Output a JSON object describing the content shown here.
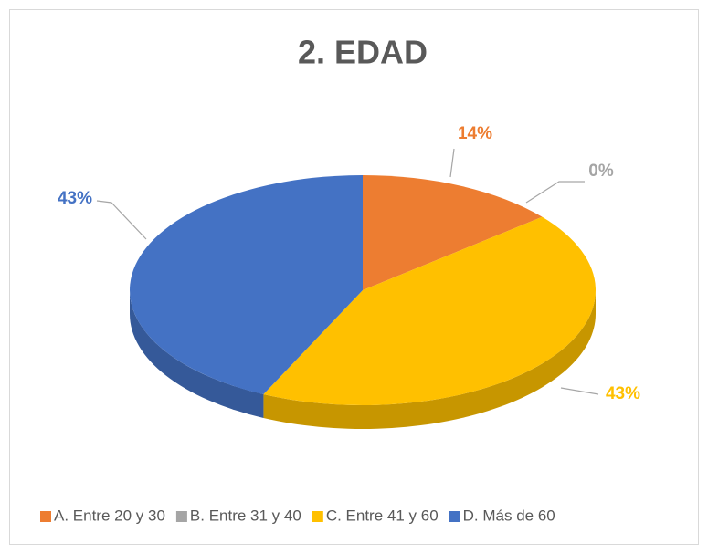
{
  "chart_data": {
    "type": "pie",
    "title": "2. EDAD",
    "categories": [
      "A. Entre 20 y 30",
      "B. Entre 31 y 40",
      "C. Entre 41 y 60",
      "D. Más de 60"
    ],
    "values": [
      14,
      0,
      43,
      43
    ],
    "value_labels": [
      "14%",
      "0%",
      "43%",
      "43%"
    ],
    "colors": [
      "#ed7d31",
      "#a5a5a5",
      "#ffc000",
      "#4472c4"
    ],
    "legend": "bottom"
  }
}
